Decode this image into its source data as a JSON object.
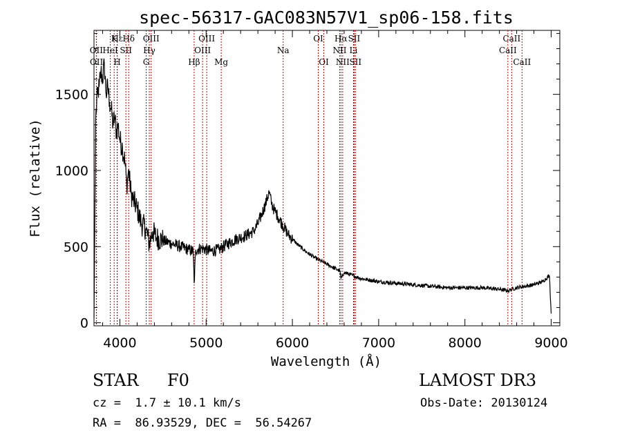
{
  "chart_data": {
    "type": "line",
    "title": "spec-56317-GAC083N57V1_sp06-158.fits",
    "xlabel": "Wavelength (Å)",
    "ylabel": "Flux (relative)",
    "xlim": [
      3700,
      9100
    ],
    "ylim": [
      -20,
      1920
    ],
    "xticks": [
      4000,
      5000,
      6000,
      7000,
      8000,
      9000
    ],
    "yticks": [
      0,
      500,
      1000,
      1500
    ],
    "series": [
      {
        "x": [
          3700,
          3720,
          3740,
          3760,
          3780,
          3800,
          3820,
          3840,
          3860,
          3880,
          3900,
          3920,
          3940,
          3960,
          3980,
          4000,
          4030,
          4060,
          4080,
          4100,
          4130,
          4160,
          4200,
          4250,
          4300,
          4340,
          4380,
          4420,
          4500,
          4600,
          4700,
          4800,
          4850,
          4861,
          4880,
          4950,
          5050,
          5150,
          5250,
          5350,
          5450,
          5550,
          5600,
          5650,
          5700,
          5730,
          5760,
          5790,
          5830,
          5880,
          5950,
          6050,
          6150,
          6250,
          6350,
          6450,
          6550,
          6563,
          6600,
          6700,
          6800,
          6900,
          7000,
          7200,
          7400,
          7600,
          7800,
          8000,
          8200,
          8400,
          8498,
          8542,
          8600,
          8700,
          8800,
          8900,
          8980,
          9000
        ],
        "y": [
          30,
          1350,
          1500,
          1550,
          1650,
          1600,
          1700,
          1500,
          1550,
          1450,
          1400,
          1300,
          1350,
          1250,
          1300,
          1200,
          1150,
          1050,
          900,
          1000,
          850,
          800,
          750,
          650,
          620,
          520,
          600,
          560,
          540,
          520,
          500,
          480,
          470,
          260,
          480,
          490,
          470,
          480,
          520,
          550,
          570,
          600,
          650,
          720,
          800,
          860,
          780,
          740,
          700,
          650,
          580,
          520,
          470,
          430,
          400,
          370,
          340,
          290,
          330,
          310,
          290,
          280,
          270,
          260,
          250,
          240,
          230,
          230,
          230,
          220,
          210,
          220,
          230,
          240,
          250,
          270,
          310,
          60
        ]
      }
    ],
    "line_ids": [
      {
        "label": "Hε",
        "x": 3970,
        "row": 0
      },
      {
        "label": "H",
        "x": 3968,
        "row": 2
      },
      {
        "label": "K",
        "x": 3934,
        "row": 0
      },
      {
        "label": "Hδ",
        "x": 4102,
        "row": 0
      },
      {
        "label": "OII",
        "x": 3727,
        "row": 1
      },
      {
        "label": "OII",
        "x": 3729,
        "row": 2
      },
      {
        "label": "HeI",
        "x": 3889,
        "row": 1
      },
      {
        "label": "SII",
        "x": 4070,
        "row": 1
      },
      {
        "label": "OIII",
        "x": 4363,
        "row": 0
      },
      {
        "label": "Hγ",
        "x": 4341,
        "row": 1
      },
      {
        "label": "G",
        "x": 4305,
        "row": 2
      },
      {
        "label": "OIII",
        "x": 5007,
        "row": 0
      },
      {
        "label": "OIII",
        "x": 4959,
        "row": 1
      },
      {
        "label": "Hβ",
        "x": 4861,
        "row": 2
      },
      {
        "label": "Mg",
        "x": 5175,
        "row": 2
      },
      {
        "label": "Na",
        "x": 5893,
        "row": 1
      },
      {
        "label": "OI",
        "x": 6300,
        "row": 0
      },
      {
        "label": "OI",
        "x": 6364,
        "row": 2
      },
      {
        "label": "Hα",
        "x": 6563,
        "row": 0
      },
      {
        "label": "NII",
        "x": 6548,
        "row": 1
      },
      {
        "label": "NII",
        "x": 6583,
        "row": 2
      },
      {
        "label": "SII",
        "x": 6716,
        "row": 0
      },
      {
        "label": "SII",
        "x": 6731,
        "row": 2
      },
      {
        "label": "Li",
        "x": 6708,
        "row": 1
      },
      {
        "label": "CaII",
        "x": 8542,
        "row": 0
      },
      {
        "label": "CaII",
        "x": 8498,
        "row": 1
      },
      {
        "label": "CaII",
        "x": 8662,
        "row": 2
      }
    ]
  },
  "footer": {
    "object_class": "STAR",
    "subclass": "F0",
    "survey": "LAMOST DR3",
    "redshift": "cz =  1.7 ± 10.1 km/s",
    "obs_date": "Obs-Date: 20130124",
    "coords": "RA =  86.93529, DEC =  56.54267"
  },
  "colors": {
    "spectrum": "#000000",
    "line_markers": "#c00000"
  }
}
